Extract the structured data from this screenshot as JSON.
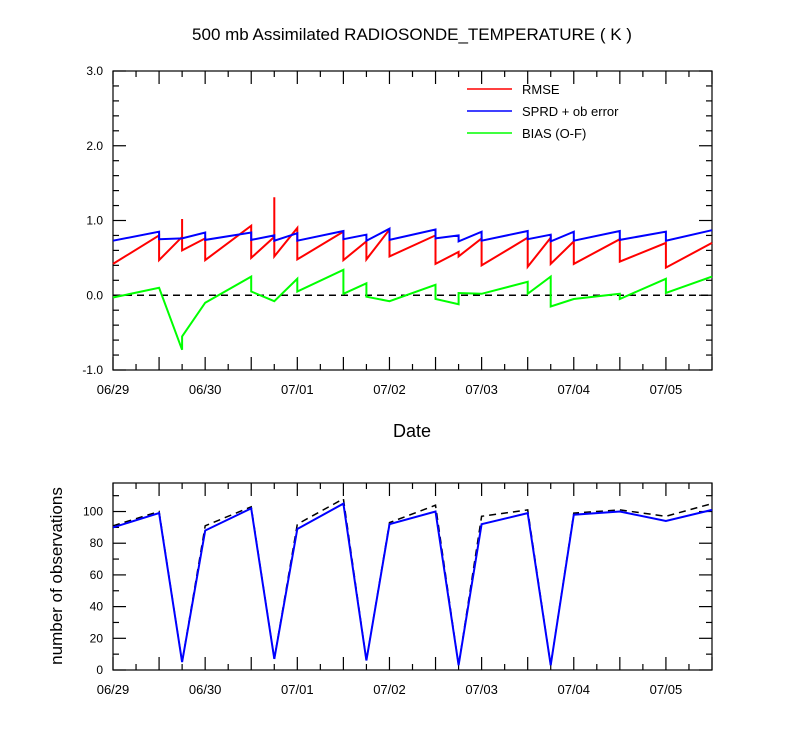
{
  "chart_data": [
    {
      "type": "line",
      "title": "500 mb Assimilated RADIOSONDE_TEMPERATURE ( K )",
      "xlabel": "Date",
      "ylabel": "",
      "x_tick_labels": [
        "06/29",
        "06/30",
        "07/01",
        "07/02",
        "07/03",
        "07/04",
        "07/05"
      ],
      "xlim": [
        0,
        6.5
      ],
      "ylim": [
        -1.0,
        3.0
      ],
      "y_tick_labels": [
        "-1.0",
        "0.0",
        "1.0",
        "2.0",
        "3.0"
      ],
      "y_ticks": [
        -1.0,
        0.0,
        1.0,
        2.0,
        3.0
      ],
      "legend_position": "top-right",
      "zero_line": "dashed",
      "grid": false,
      "series": [
        {
          "name": "RMSE",
          "color": "#ff0000",
          "points": [
            [
              0.0,
              0.42
            ],
            [
              0.5,
              0.8
            ],
            [
              0.5,
              0.47
            ],
            [
              0.75,
              0.78
            ],
            [
              0.75,
              1.02
            ],
            [
              0.75,
              0.6
            ],
            [
              1.0,
              0.76
            ],
            [
              1.0,
              0.47
            ],
            [
              1.5,
              0.93
            ],
            [
              1.5,
              0.5
            ],
            [
              1.75,
              0.78
            ],
            [
              1.75,
              1.31
            ],
            [
              1.75,
              0.52
            ],
            [
              2.0,
              0.9
            ],
            [
              2.0,
              0.48
            ],
            [
              2.5,
              0.85
            ],
            [
              2.5,
              0.47
            ],
            [
              2.75,
              0.72
            ],
            [
              2.75,
              0.48
            ],
            [
              3.0,
              0.88
            ],
            [
              3.0,
              0.52
            ],
            [
              3.5,
              0.8
            ],
            [
              3.5,
              0.42
            ],
            [
              3.75,
              0.58
            ],
            [
              3.75,
              0.52
            ],
            [
              4.0,
              0.76
            ],
            [
              4.0,
              0.4
            ],
            [
              4.5,
              0.77
            ],
            [
              4.5,
              0.38
            ],
            [
              4.75,
              0.77
            ],
            [
              4.75,
              0.42
            ],
            [
              5.0,
              0.72
            ],
            [
              5.0,
              0.42
            ],
            [
              5.5,
              0.75
            ],
            [
              5.5,
              0.45
            ],
            [
              6.0,
              0.7
            ],
            [
              6.0,
              0.37
            ],
            [
              6.5,
              0.7
            ]
          ]
        },
        {
          "name": "SPRD + ob error",
          "color": "#0000ff",
          "points": [
            [
              0.0,
              0.73
            ],
            [
              0.5,
              0.85
            ],
            [
              0.5,
              0.75
            ],
            [
              0.75,
              0.76
            ],
            [
              1.0,
              0.84
            ],
            [
              1.0,
              0.74
            ],
            [
              1.5,
              0.84
            ],
            [
              1.5,
              0.74
            ],
            [
              1.75,
              0.8
            ],
            [
              1.75,
              0.73
            ],
            [
              2.0,
              0.83
            ],
            [
              2.0,
              0.73
            ],
            [
              2.5,
              0.86
            ],
            [
              2.5,
              0.75
            ],
            [
              2.75,
              0.81
            ],
            [
              2.75,
              0.73
            ],
            [
              3.0,
              0.89
            ],
            [
              3.0,
              0.74
            ],
            [
              3.5,
              0.88
            ],
            [
              3.5,
              0.76
            ],
            [
              3.75,
              0.8
            ],
            [
              3.75,
              0.72
            ],
            [
              4.0,
              0.85
            ],
            [
              4.0,
              0.73
            ],
            [
              4.5,
              0.86
            ],
            [
              4.5,
              0.75
            ],
            [
              4.75,
              0.81
            ],
            [
              4.75,
              0.72
            ],
            [
              5.0,
              0.85
            ],
            [
              5.0,
              0.73
            ],
            [
              5.5,
              0.86
            ],
            [
              5.5,
              0.74
            ],
            [
              6.0,
              0.85
            ],
            [
              6.0,
              0.73
            ],
            [
              6.5,
              0.87
            ]
          ]
        },
        {
          "name": "BIAS (O-F)",
          "color": "#00ff00",
          "points": [
            [
              0.0,
              -0.03
            ],
            [
              0.5,
              0.1
            ],
            [
              0.75,
              -0.73
            ],
            [
              0.75,
              -0.55
            ],
            [
              1.0,
              -0.1
            ],
            [
              1.5,
              0.25
            ],
            [
              1.5,
              0.05
            ],
            [
              1.75,
              -0.08
            ],
            [
              2.0,
              0.22
            ],
            [
              2.0,
              0.05
            ],
            [
              2.5,
              0.34
            ],
            [
              2.5,
              0.02
            ],
            [
              2.75,
              0.16
            ],
            [
              2.75,
              -0.02
            ],
            [
              3.0,
              -0.08
            ],
            [
              3.5,
              0.14
            ],
            [
              3.5,
              -0.05
            ],
            [
              3.75,
              -0.12
            ],
            [
              3.75,
              0.03
            ],
            [
              4.0,
              0.02
            ],
            [
              4.5,
              0.18
            ],
            [
              4.5,
              0.02
            ],
            [
              4.75,
              0.25
            ],
            [
              4.75,
              -0.15
            ],
            [
              5.0,
              -0.05
            ],
            [
              5.5,
              0.02
            ],
            [
              5.5,
              -0.05
            ],
            [
              6.0,
              0.22
            ],
            [
              6.0,
              0.03
            ],
            [
              6.5,
              0.25
            ]
          ]
        }
      ]
    },
    {
      "type": "line",
      "title": "",
      "xlabel": "",
      "ylabel": "number of observations",
      "x_tick_labels": [
        "06/29",
        "06/30",
        "07/01",
        "07/02",
        "07/03",
        "07/04",
        "07/05"
      ],
      "xlim": [
        0,
        6.5
      ],
      "ylim": [
        0,
        118
      ],
      "y_tick_labels": [
        "0",
        "20",
        "40",
        "60",
        "80",
        "100"
      ],
      "y_ticks": [
        0,
        20,
        40,
        60,
        80,
        100
      ],
      "grid": false,
      "series": [
        {
          "color": "#000000",
          "dash": "dashed",
          "points": [
            [
              0.0,
              91
            ],
            [
              0.5,
              100
            ],
            [
              0.75,
              5
            ],
            [
              1.0,
              91
            ],
            [
              1.5,
              103
            ],
            [
              1.75,
              7
            ],
            [
              2.0,
              92
            ],
            [
              2.5,
              108
            ],
            [
              2.75,
              6
            ],
            [
              3.0,
              93
            ],
            [
              3.5,
              104
            ],
            [
              3.75,
              3
            ],
            [
              4.0,
              97
            ],
            [
              4.5,
              101
            ],
            [
              4.75,
              3
            ],
            [
              5.0,
              99
            ],
            [
              5.5,
              101
            ],
            [
              6.0,
              97
            ],
            [
              6.5,
              105
            ]
          ]
        },
        {
          "color": "#0000ff",
          "dash": "solid",
          "points": [
            [
              0.0,
              90
            ],
            [
              0.5,
              99
            ],
            [
              0.75,
              5
            ],
            [
              1.0,
              88
            ],
            [
              1.5,
              102
            ],
            [
              1.75,
              7
            ],
            [
              2.0,
              89
            ],
            [
              2.5,
              105
            ],
            [
              2.75,
              6
            ],
            [
              3.0,
              92
            ],
            [
              3.5,
              100
            ],
            [
              3.75,
              3
            ],
            [
              4.0,
              92
            ],
            [
              4.5,
              99
            ],
            [
              4.75,
              3
            ],
            [
              5.0,
              98
            ],
            [
              5.5,
              100
            ],
            [
              6.0,
              94
            ],
            [
              6.5,
              101
            ]
          ]
        }
      ]
    }
  ]
}
